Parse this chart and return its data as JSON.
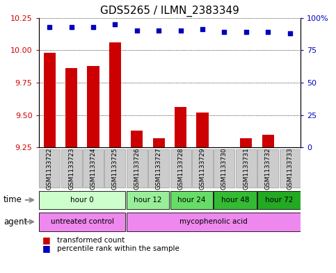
{
  "title": "GDS5265 / ILMN_2383349",
  "samples": [
    "GSM1133722",
    "GSM1133723",
    "GSM1133724",
    "GSM1133725",
    "GSM1133726",
    "GSM1133727",
    "GSM1133728",
    "GSM1133729",
    "GSM1133730",
    "GSM1133731",
    "GSM1133732",
    "GSM1133733"
  ],
  "transformed_count": [
    9.98,
    9.86,
    9.88,
    10.06,
    9.38,
    9.32,
    9.56,
    9.52,
    9.25,
    9.32,
    9.35,
    9.25
  ],
  "percentile_rank": [
    93,
    93,
    93,
    95,
    90,
    90,
    90,
    91,
    89,
    89,
    89,
    88
  ],
  "ylim_left": [
    9.25,
    10.25
  ],
  "ylim_right": [
    0,
    100
  ],
  "yticks_left": [
    9.25,
    9.5,
    9.75,
    10.0,
    10.25
  ],
  "yticks_right": [
    0,
    25,
    50,
    75,
    100
  ],
  "bar_color": "#cc0000",
  "dot_color": "#0000bb",
  "bar_bottom": 9.25,
  "time_groups": [
    {
      "label": "hour 0",
      "start": 0,
      "end": 4,
      "color": "#ccffcc"
    },
    {
      "label": "hour 12",
      "start": 4,
      "end": 6,
      "color": "#99ee99"
    },
    {
      "label": "hour 24",
      "start": 6,
      "end": 8,
      "color": "#66dd66"
    },
    {
      "label": "hour 48",
      "start": 8,
      "end": 10,
      "color": "#33bb33"
    },
    {
      "label": "hour 72",
      "start": 10,
      "end": 12,
      "color": "#22aa22"
    }
  ],
  "agent_groups": [
    {
      "label": "untreated control",
      "start": 0,
      "end": 4,
      "color": "#ee88ee"
    },
    {
      "label": "mycophenolic acid",
      "start": 4,
      "end": 12,
      "color": "#ee88ee"
    }
  ],
  "legend_bar_label": "transformed count",
  "legend_dot_label": "percentile rank within the sample",
  "title_fontsize": 11,
  "tick_label_color_left": "#cc0000",
  "tick_label_color_right": "#0000bb",
  "sample_box_color": "#cccccc",
  "sample_box_edge": "#999999"
}
